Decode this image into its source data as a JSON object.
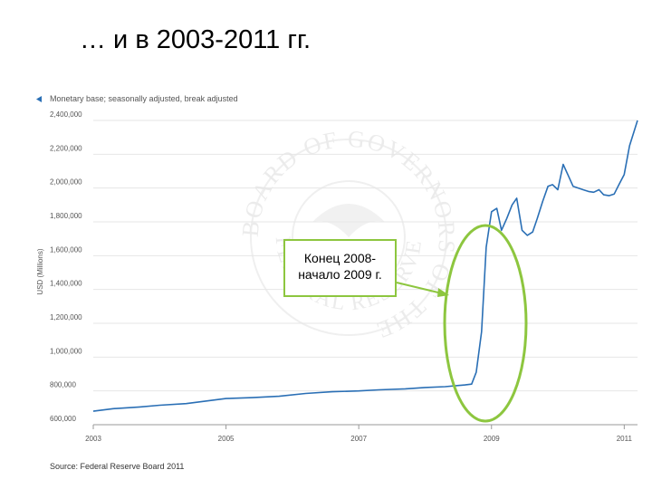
{
  "slide": {
    "title": "… и в 2003-2011 гг."
  },
  "callout": {
    "line1": "Конец 2008-",
    "line2": "начало 2009 г."
  },
  "colors": {
    "series": "#2a6fb5",
    "highlight": "#8dc63f",
    "grid": "#e6e6e6",
    "watermark": "#d6d6d6"
  },
  "watermark": {
    "outer": "BOARD OF GOVERNORS OF THE",
    "inner": "FEDERAL RESERVE SYSTEM"
  },
  "chart_data": {
    "type": "line",
    "legend": "Monetary base; seasonally adjusted, break adjusted",
    "legend_placement": "top-left",
    "ylabel": "USD (Millions)",
    "source": "Source: Federal Reserve Board 2011",
    "ylim": [
      600000,
      2400000
    ],
    "xlim": [
      2003.0,
      2011.2
    ],
    "grid": true,
    "y_ticks": [
      {
        "value": 600000,
        "label": "600,000"
      },
      {
        "value": 800000,
        "label": "800,000"
      },
      {
        "value": 1000000,
        "label": "1,000,000"
      },
      {
        "value": 1200000,
        "label": "1,200,000"
      },
      {
        "value": 1400000,
        "label": "1,400,000"
      },
      {
        "value": 1600000,
        "label": "1,600,000"
      },
      {
        "value": 1800000,
        "label": "1,800,000"
      },
      {
        "value": 2000000,
        "label": "2,000,000"
      },
      {
        "value": 2200000,
        "label": "2,200,000"
      },
      {
        "value": 2400000,
        "label": "2,400,000"
      }
    ],
    "x_ticks": [
      {
        "value": 2003,
        "label": "2003"
      },
      {
        "value": 2005,
        "label": "2005"
      },
      {
        "value": 2007,
        "label": "2007"
      },
      {
        "value": 2009,
        "label": "2009"
      },
      {
        "value": 2011,
        "label": "2011"
      }
    ],
    "series": [
      {
        "x": [
          2003.0,
          2003.3,
          2003.7,
          2004.0,
          2004.4,
          2004.8,
          2005.0,
          2005.4,
          2005.8,
          2006.2,
          2006.6,
          2007.0,
          2007.3,
          2007.7,
          2008.0,
          2008.3,
          2008.6,
          2008.7,
          2008.77,
          2008.85,
          2008.92,
          2009.0,
          2009.08,
          2009.15,
          2009.23,
          2009.31,
          2009.38,
          2009.46,
          2009.54,
          2009.62,
          2009.69,
          2009.77,
          2009.85,
          2009.92,
          2010.0,
          2010.08,
          2010.15,
          2010.23,
          2010.31,
          2010.38,
          2010.46,
          2010.54,
          2010.62,
          2010.69,
          2010.77,
          2010.85,
          2010.92,
          2011.0,
          2011.08,
          2011.2
        ],
        "values": [
          680000,
          695000,
          705000,
          715000,
          725000,
          745000,
          755000,
          760000,
          768000,
          785000,
          795000,
          800000,
          806000,
          812000,
          820000,
          825000,
          835000,
          840000,
          910000,
          1150000,
          1650000,
          1860000,
          1880000,
          1750000,
          1820000,
          1900000,
          1940000,
          1750000,
          1720000,
          1740000,
          1820000,
          1920000,
          2010000,
          2020000,
          1990000,
          2140000,
          2080000,
          2010000,
          2000000,
          1990000,
          1980000,
          1975000,
          1990000,
          1960000,
          1955000,
          1965000,
          2020000,
          2080000,
          2250000,
          2400000
        ]
      }
    ]
  }
}
